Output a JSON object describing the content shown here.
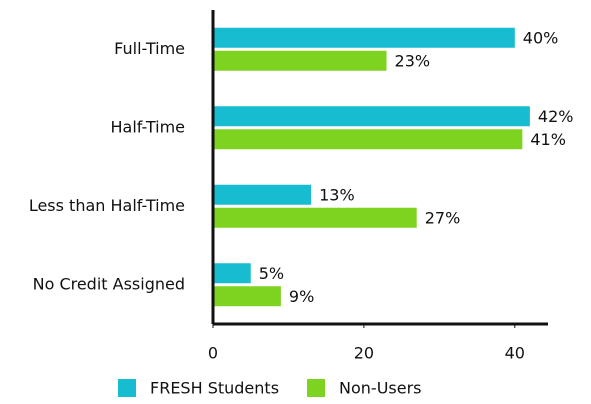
{
  "chart_data": {
    "type": "hbar",
    "categories": [
      "Full-Time",
      "Half-Time",
      "Less than Half-Time",
      "No Credit Assigned"
    ],
    "series": [
      {
        "name": "FRESH Students",
        "color": "#17bcd0",
        "values": [
          40,
          42,
          13,
          5
        ],
        "value_labels": [
          "40%",
          "42%",
          "13%",
          "5%"
        ]
      },
      {
        "name": "Non-Users",
        "color": "#7ed321",
        "values": [
          23,
          41,
          27,
          9
        ],
        "value_labels": [
          "23%",
          "41%",
          "27%",
          "9%"
        ]
      }
    ],
    "xlim": [
      0,
      44.4
    ],
    "xticks": [
      0,
      20,
      40
    ],
    "legend": "bottom"
  }
}
